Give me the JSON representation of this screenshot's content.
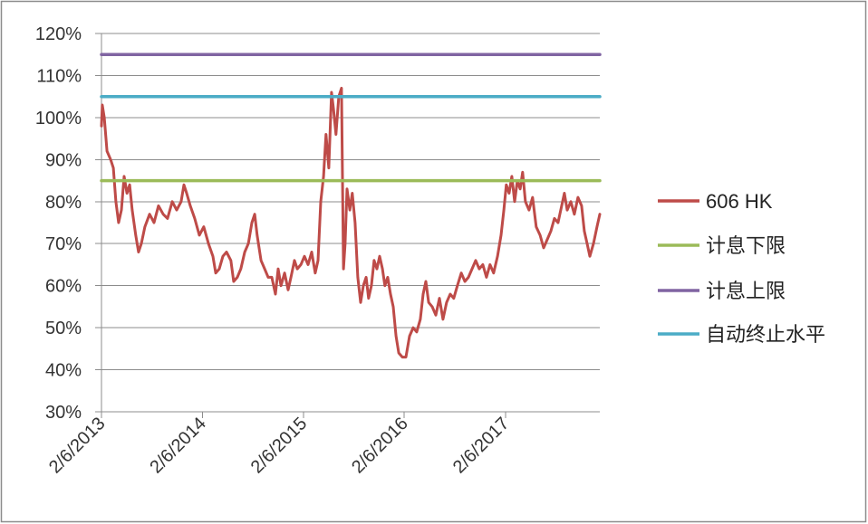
{
  "chart_data": {
    "type": "line",
    "x_tick_labels": [
      "2/6/2013",
      "2/6/2014",
      "2/6/2015",
      "2/6/2016",
      "2/6/2017"
    ],
    "y_tick_labels": [
      "30%",
      "40%",
      "50%",
      "60%",
      "70%",
      "80%",
      "90%",
      "100%",
      "110%",
      "120%"
    ],
    "xlim": [
      "2013-02-06",
      "2018-01-13"
    ],
    "ylim": [
      30,
      120
    ],
    "grid": "horizontal",
    "legend_position": "right",
    "series": [
      {
        "name": "606 HK",
        "color": "#BE4B48",
        "points": [
          [
            "2013-02-06",
            98
          ],
          [
            "2013-02-09",
            103
          ],
          [
            "2013-02-16",
            100
          ],
          [
            "2013-02-26",
            92
          ],
          [
            "2013-03-11",
            90
          ],
          [
            "2013-03-21",
            88
          ],
          [
            "2013-03-30",
            80
          ],
          [
            "2013-04-09",
            75
          ],
          [
            "2013-04-19",
            78
          ],
          [
            "2013-04-29",
            86
          ],
          [
            "2013-05-09",
            82
          ],
          [
            "2013-05-19",
            84
          ],
          [
            "2013-05-28",
            78
          ],
          [
            "2013-06-10",
            72
          ],
          [
            "2013-06-20",
            68
          ],
          [
            "2013-06-30",
            70
          ],
          [
            "2013-07-13",
            74
          ],
          [
            "2013-07-30",
            77
          ],
          [
            "2013-08-15",
            75
          ],
          [
            "2013-08-31",
            79
          ],
          [
            "2013-09-17",
            77
          ],
          [
            "2013-10-03",
            76
          ],
          [
            "2013-10-20",
            80
          ],
          [
            "2013-11-05",
            78
          ],
          [
            "2013-11-21",
            80
          ],
          [
            "2013-12-01",
            84
          ],
          [
            "2013-12-11",
            82
          ],
          [
            "2013-12-24",
            79
          ],
          [
            "2014-01-09",
            76
          ],
          [
            "2014-01-26",
            72
          ],
          [
            "2014-02-11",
            74
          ],
          [
            "2014-02-28",
            70
          ],
          [
            "2014-03-16",
            67
          ],
          [
            "2014-03-26",
            63
          ],
          [
            "2014-04-08",
            64
          ],
          [
            "2014-04-21",
            67
          ],
          [
            "2014-05-04",
            68
          ],
          [
            "2014-05-20",
            66
          ],
          [
            "2014-05-30",
            61
          ],
          [
            "2014-06-12",
            62
          ],
          [
            "2014-06-25",
            64
          ],
          [
            "2014-07-09",
            68
          ],
          [
            "2014-07-22",
            70
          ],
          [
            "2014-08-04",
            75
          ],
          [
            "2014-08-14",
            77
          ],
          [
            "2014-08-23",
            72
          ],
          [
            "2014-09-06",
            66
          ],
          [
            "2014-09-19",
            64
          ],
          [
            "2014-10-02",
            62
          ],
          [
            "2014-10-15",
            62
          ],
          [
            "2014-10-28",
            58
          ],
          [
            "2014-11-07",
            64
          ],
          [
            "2014-11-17",
            60
          ],
          [
            "2014-11-30",
            63
          ],
          [
            "2014-12-13",
            59
          ],
          [
            "2014-12-23",
            62
          ],
          [
            "2015-01-05",
            66
          ],
          [
            "2015-01-15",
            64
          ],
          [
            "2015-01-28",
            65
          ],
          [
            "2015-02-10",
            67
          ],
          [
            "2015-02-23",
            65
          ],
          [
            "2015-03-08",
            68
          ],
          [
            "2015-03-21",
            63
          ],
          [
            "2015-03-31",
            66
          ],
          [
            "2015-04-10",
            80
          ],
          [
            "2015-04-20",
            86
          ],
          [
            "2015-04-29",
            96
          ],
          [
            "2015-05-09",
            88
          ],
          [
            "2015-05-19",
            106
          ],
          [
            "2015-05-26",
            102
          ],
          [
            "2015-06-04",
            96
          ],
          [
            "2015-06-14",
            105
          ],
          [
            "2015-06-24",
            107
          ],
          [
            "2015-07-01",
            64
          ],
          [
            "2015-07-07",
            70
          ],
          [
            "2015-07-14",
            83
          ],
          [
            "2015-07-24",
            78
          ],
          [
            "2015-08-02",
            82
          ],
          [
            "2015-08-12",
            75
          ],
          [
            "2015-08-22",
            62
          ],
          [
            "2015-09-01",
            56
          ],
          [
            "2015-09-11",
            60
          ],
          [
            "2015-09-21",
            62
          ],
          [
            "2015-09-30",
            57
          ],
          [
            "2015-10-10",
            60
          ],
          [
            "2015-10-20",
            66
          ],
          [
            "2015-10-30",
            64
          ],
          [
            "2015-11-09",
            67
          ],
          [
            "2015-11-19",
            64
          ],
          [
            "2015-11-28",
            60
          ],
          [
            "2015-12-08",
            62
          ],
          [
            "2015-12-18",
            58
          ],
          [
            "2015-12-28",
            55
          ],
          [
            "2016-01-07",
            48
          ],
          [
            "2016-01-17",
            44
          ],
          [
            "2016-01-30",
            43
          ],
          [
            "2016-02-12",
            43
          ],
          [
            "2016-02-25",
            48
          ],
          [
            "2016-03-09",
            50
          ],
          [
            "2016-03-22",
            49
          ],
          [
            "2016-04-04",
            52
          ],
          [
            "2016-04-14",
            58
          ],
          [
            "2016-04-24",
            61
          ],
          [
            "2016-05-04",
            56
          ],
          [
            "2016-05-17",
            55
          ],
          [
            "2016-05-30",
            53
          ],
          [
            "2016-06-12",
            57
          ],
          [
            "2016-06-25",
            52
          ],
          [
            "2016-07-08",
            56
          ],
          [
            "2016-07-21",
            58
          ],
          [
            "2016-08-03",
            57
          ],
          [
            "2016-08-16",
            60
          ],
          [
            "2016-08-30",
            63
          ],
          [
            "2016-09-12",
            61
          ],
          [
            "2016-09-25",
            62
          ],
          [
            "2016-10-08",
            64
          ],
          [
            "2016-10-21",
            66
          ],
          [
            "2016-11-03",
            64
          ],
          [
            "2016-11-16",
            65
          ],
          [
            "2016-11-29",
            62
          ],
          [
            "2016-12-12",
            65
          ],
          [
            "2016-12-25",
            63
          ],
          [
            "2017-01-08",
            67
          ],
          [
            "2017-01-21",
            72
          ],
          [
            "2017-01-31",
            78
          ],
          [
            "2017-02-09",
            84
          ],
          [
            "2017-02-19",
            82
          ],
          [
            "2017-03-01",
            86
          ],
          [
            "2017-03-11",
            80
          ],
          [
            "2017-03-21",
            85
          ],
          [
            "2017-03-31",
            83
          ],
          [
            "2017-04-09",
            87
          ],
          [
            "2017-04-19",
            80
          ],
          [
            "2017-05-02",
            78
          ],
          [
            "2017-05-15",
            81
          ],
          [
            "2017-05-28",
            74
          ],
          [
            "2017-06-11",
            72
          ],
          [
            "2017-06-24",
            69
          ],
          [
            "2017-07-07",
            71
          ],
          [
            "2017-07-20",
            73
          ],
          [
            "2017-08-02",
            76
          ],
          [
            "2017-08-15",
            75
          ],
          [
            "2017-08-28",
            79
          ],
          [
            "2017-09-07",
            82
          ],
          [
            "2017-09-17",
            78
          ],
          [
            "2017-09-30",
            80
          ],
          [
            "2017-10-13",
            77
          ],
          [
            "2017-10-26",
            81
          ],
          [
            "2017-11-08",
            79
          ],
          [
            "2017-11-18",
            73
          ],
          [
            "2017-11-28",
            70
          ],
          [
            "2017-12-08",
            67
          ],
          [
            "2017-12-21",
            70
          ],
          [
            "2018-01-03",
            74
          ],
          [
            "2018-01-13",
            77
          ]
        ]
      },
      {
        "name": "计息下限",
        "color": "#9BBB59",
        "points": [
          [
            "2013-02-06",
            85
          ],
          [
            "2018-01-13",
            85
          ]
        ]
      },
      {
        "name": "计息上限",
        "color": "#8064A2",
        "points": [
          [
            "2013-02-06",
            115
          ],
          [
            "2018-01-13",
            115
          ]
        ]
      },
      {
        "name": "自动终止水平",
        "color": "#4BACC6",
        "points": [
          [
            "2013-02-06",
            105
          ],
          [
            "2018-01-13",
            105
          ]
        ]
      }
    ]
  }
}
